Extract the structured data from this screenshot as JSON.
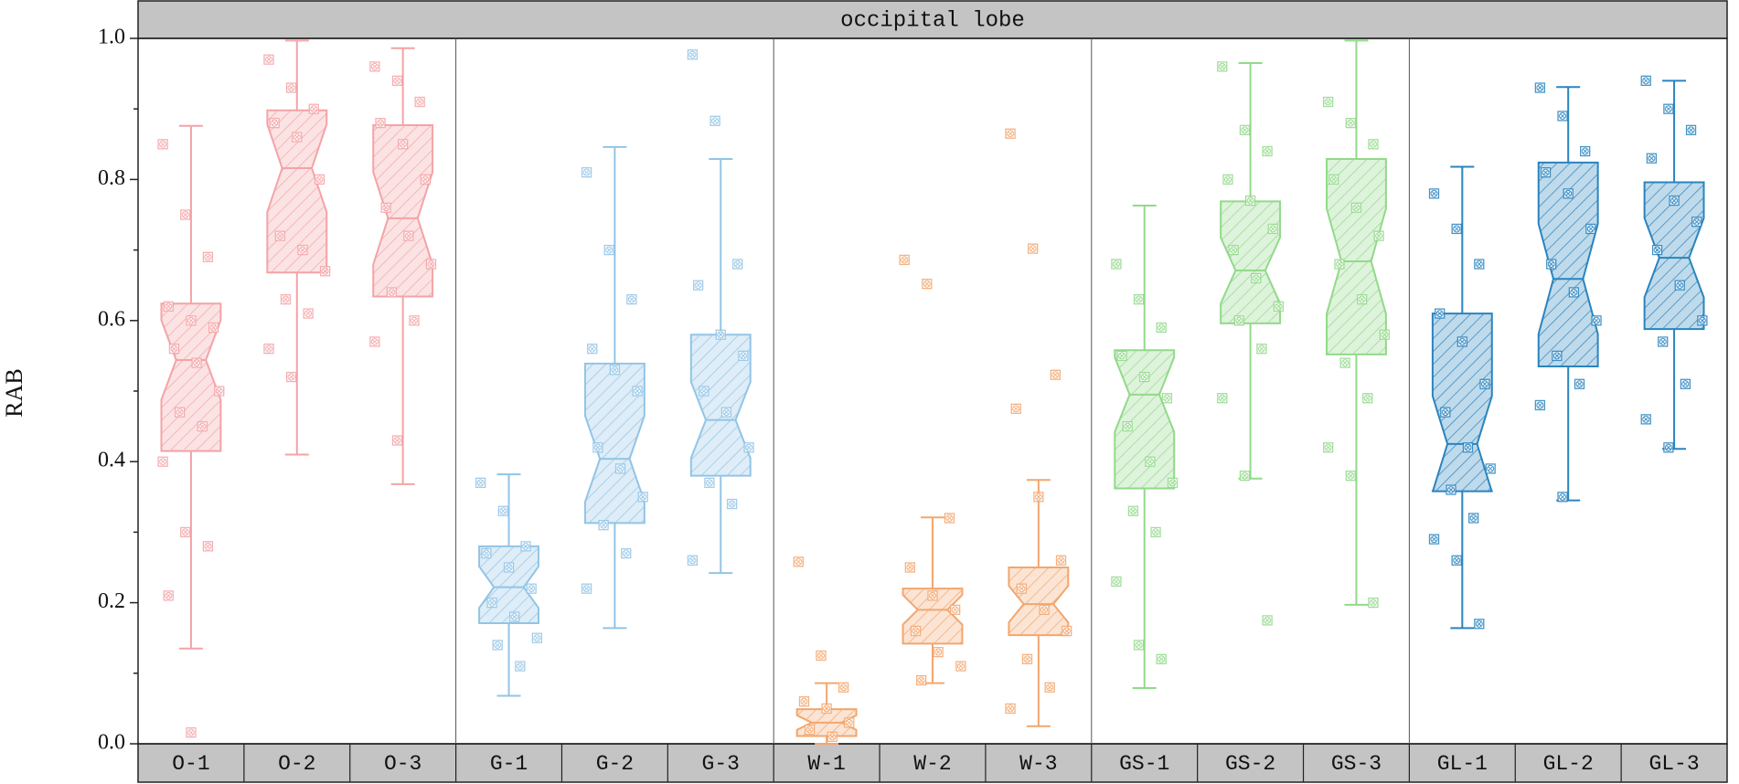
{
  "chart_data": {
    "type": "box",
    "title": "occipital lobe",
    "y_label": "RAB",
    "categories": [
      "O-1",
      "O-2",
      "O-3",
      "G-1",
      "G-2",
      "G-3",
      "W-1",
      "W-2",
      "W-3",
      "GS-1",
      "GS-2",
      "GS-3",
      "GL-1",
      "GL-2",
      "GL-3"
    ],
    "ylim": [
      0,
      1
    ],
    "yticks": [
      {
        "value": 0,
        "label": "0.0"
      },
      0.2,
      0.4,
      0.6,
      0.8,
      {
        "value": 1,
        "label": "1.0"
      }
    ],
    "minor_yticks": [
      0.1,
      0.3,
      0.5,
      0.7,
      0.9
    ],
    "boxes": [
      {
        "color": "#f4a3a6",
        "low": 0.135,
        "q1": 0.415,
        "median": 0.544,
        "q3": 0.624,
        "high": 0.876,
        "points": [
          0.85,
          0.75,
          0.69,
          0.62,
          0.6,
          0.59,
          0.56,
          0.54,
          0.5,
          0.47,
          0.45,
          0.4,
          0.3,
          0.28,
          0.21,
          0.016
        ]
      },
      {
        "color": "#f4a3a6",
        "low": 0.41,
        "q1": 0.668,
        "median": 0.816,
        "q3": 0.898,
        "high": 0.997,
        "points": [
          0.97,
          0.93,
          0.9,
          0.88,
          0.86,
          0.8,
          0.72,
          0.7,
          0.67,
          0.63,
          0.61,
          0.56,
          0.52
        ]
      },
      {
        "color": "#f4a3a6",
        "low": 0.368,
        "q1": 0.634,
        "median": 0.745,
        "q3": 0.877,
        "high": 0.986,
        "points": [
          0.96,
          0.94,
          0.91,
          0.88,
          0.85,
          0.8,
          0.76,
          0.72,
          0.68,
          0.64,
          0.6,
          0.57,
          0.43
        ]
      },
      {
        "color": "#93c4e6",
        "low": 0.068,
        "q1": 0.171,
        "median": 0.222,
        "q3": 0.28,
        "high": 0.382,
        "points": [
          0.37,
          0.33,
          0.28,
          0.27,
          0.25,
          0.22,
          0.2,
          0.18,
          0.15,
          0.14,
          0.11
        ]
      },
      {
        "color": "#93c4e6",
        "low": 0.164,
        "q1": 0.313,
        "median": 0.404,
        "q3": 0.539,
        "high": 0.846,
        "points": [
          0.81,
          0.7,
          0.63,
          0.56,
          0.53,
          0.5,
          0.42,
          0.39,
          0.35,
          0.31,
          0.27,
          0.22
        ]
      },
      {
        "color": "#93c4e6",
        "low": 0.242,
        "q1": 0.38,
        "median": 0.459,
        "q3": 0.58,
        "high": 0.829,
        "points": [
          0.977,
          0.883,
          0.68,
          0.65,
          0.58,
          0.55,
          0.5,
          0.47,
          0.42,
          0.37,
          0.34,
          0.26
        ]
      },
      {
        "color": "#f3a66e",
        "low": 0.0,
        "q1": 0.011,
        "median": 0.03,
        "q3": 0.049,
        "high": 0.086,
        "points": [
          0.258,
          0.125,
          0.08,
          0.06,
          0.05,
          0.03,
          0.02,
          0.01
        ]
      },
      {
        "color": "#f3a66e",
        "low": 0.086,
        "q1": 0.142,
        "median": 0.19,
        "q3": 0.22,
        "high": 0.321,
        "points": [
          0.686,
          0.652,
          0.32,
          0.25,
          0.21,
          0.19,
          0.16,
          0.13,
          0.11,
          0.09
        ]
      },
      {
        "color": "#f3a66e",
        "low": 0.025,
        "q1": 0.154,
        "median": 0.198,
        "q3": 0.25,
        "high": 0.374,
        "points": [
          0.865,
          0.702,
          0.523,
          0.475,
          0.35,
          0.26,
          0.22,
          0.19,
          0.16,
          0.12,
          0.08,
          0.05
        ]
      },
      {
        "color": "#92d98a",
        "low": 0.079,
        "q1": 0.362,
        "median": 0.495,
        "q3": 0.558,
        "high": 0.763,
        "points": [
          0.68,
          0.63,
          0.59,
          0.55,
          0.52,
          0.49,
          0.45,
          0.4,
          0.37,
          0.33,
          0.3,
          0.23,
          0.14,
          0.12
        ]
      },
      {
        "color": "#92d98a",
        "low": 0.376,
        "q1": 0.596,
        "median": 0.671,
        "q3": 0.769,
        "high": 0.965,
        "points": [
          0.96,
          0.87,
          0.84,
          0.8,
          0.77,
          0.73,
          0.7,
          0.66,
          0.62,
          0.6,
          0.56,
          0.49,
          0.38,
          0.175
        ]
      },
      {
        "color": "#92d98a",
        "low": 0.197,
        "q1": 0.552,
        "median": 0.684,
        "q3": 0.829,
        "high": 0.997,
        "points": [
          0.91,
          0.88,
          0.85,
          0.8,
          0.76,
          0.72,
          0.68,
          0.63,
          0.58,
          0.54,
          0.49,
          0.42,
          0.38,
          0.2
        ]
      },
      {
        "color": "#2a84bf",
        "low": 0.164,
        "q1": 0.358,
        "median": 0.425,
        "q3": 0.61,
        "high": 0.818,
        "points": [
          0.78,
          0.73,
          0.68,
          0.61,
          0.57,
          0.51,
          0.47,
          0.42,
          0.39,
          0.36,
          0.32,
          0.29,
          0.26,
          0.17
        ]
      },
      {
        "color": "#2a84bf",
        "low": 0.345,
        "q1": 0.535,
        "median": 0.659,
        "q3": 0.824,
        "high": 0.931,
        "points": [
          0.93,
          0.89,
          0.84,
          0.81,
          0.78,
          0.73,
          0.68,
          0.64,
          0.6,
          0.55,
          0.51,
          0.48,
          0.35
        ]
      },
      {
        "color": "#2a84bf",
        "low": 0.418,
        "q1": 0.588,
        "median": 0.689,
        "q3": 0.796,
        "high": 0.94,
        "points": [
          0.94,
          0.9,
          0.87,
          0.83,
          0.77,
          0.74,
          0.7,
          0.65,
          0.6,
          0.57,
          0.51,
          0.46,
          0.42
        ]
      }
    ]
  }
}
